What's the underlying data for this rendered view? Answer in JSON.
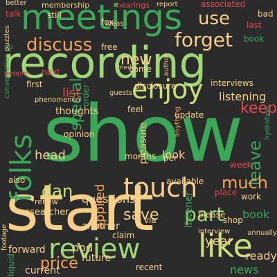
{
  "background_color": "#2b2b2b",
  "palette": {
    "green": "#3aa857",
    "lightgreen": "#9fd676",
    "yellowgreen": "#c8e07a",
    "cream": "#f6cf8a",
    "orange": "#f4a25b",
    "red": "#e0484d",
    "darkred": "#c0392b"
  },
  "words": [
    {
      "text": "show",
      "color": "green"
    },
    {
      "text": "start",
      "color": "cream"
    },
    {
      "text": "recording",
      "color": "lightgreen"
    },
    {
      "text": "meetings",
      "color": "green"
    },
    {
      "text": "folks",
      "color": "green"
    },
    {
      "text": "enjoy",
      "color": "yellowgreen"
    },
    {
      "text": "like",
      "color": "yellowgreen"
    },
    {
      "text": "touch",
      "color": "cream"
    },
    {
      "text": "review",
      "color": "lightgreen"
    },
    {
      "text": "forget",
      "color": "cream"
    },
    {
      "text": "discuss",
      "color": "orange"
    },
    {
      "text": "use",
      "color": "cream"
    },
    {
      "text": "new",
      "color": "cream"
    },
    {
      "text": "special",
      "color": "green"
    },
    {
      "text": "keep",
      "color": "red"
    },
    {
      "text": "leave",
      "color": "green"
    },
    {
      "text": "much",
      "color": "orange"
    },
    {
      "text": "part",
      "color": "lightgreen"
    },
    {
      "text": "dan",
      "color": "yellowgreen"
    },
    {
      "text": "applied",
      "color": "orange"
    },
    {
      "text": "save",
      "color": "cream"
    },
    {
      "text": "price",
      "color": "orange"
    },
    {
      "text": "questions",
      "color": "cream"
    },
    {
      "text": "list",
      "color": "red"
    },
    {
      "text": "listening",
      "color": "cream"
    },
    {
      "text": "head",
      "color": "cream"
    },
    {
      "text": "thoughts",
      "color": "cream"
    },
    {
      "text": "year",
      "color": "cream"
    },
    {
      "text": "ready",
      "color": "cream"
    },
    {
      "text": "news",
      "color": "green"
    },
    {
      "text": "book",
      "color": "green"
    },
    {
      "text": "look",
      "color": "cream"
    },
    {
      "text": "listener",
      "color": "green"
    },
    {
      "text": "pleasure",
      "color": "cream"
    },
    {
      "text": "future",
      "color": "cream"
    },
    {
      "text": "order",
      "color": "green"
    },
    {
      "text": "another",
      "color": "cream"
    },
    {
      "text": "pod",
      "color": "cream"
    },
    {
      "text": "current",
      "color": "cream"
    },
    {
      "text": "forward",
      "color": "cream"
    },
    {
      "text": "liquid",
      "color": "green"
    },
    {
      "text": "researcher",
      "color": "cream"
    },
    {
      "text": "shop",
      "color": "cream"
    },
    {
      "text": "available",
      "color": "cream"
    },
    {
      "text": "update",
      "color": "cream"
    },
    {
      "text": "interviews",
      "color": "cream"
    },
    {
      "text": "disclosure",
      "color": "cream"
    },
    {
      "text": "opinion",
      "color": "cream"
    },
    {
      "text": "associated",
      "color": "red"
    },
    {
      "text": "membership",
      "color": "cream"
    },
    {
      "text": "hearings",
      "color": "red"
    },
    {
      "text": "report",
      "color": "cream"
    },
    {
      "text": "better",
      "color": "cream"
    },
    {
      "text": "talk",
      "color": "red"
    },
    {
      "text": "still",
      "color": "cream"
    },
    {
      "text": "bad",
      "color": "cream"
    },
    {
      "text": "last",
      "color": "red"
    },
    {
      "text": "book",
      "color": "green"
    },
    {
      "text": "media",
      "color": "cream"
    },
    {
      "text": "free",
      "color": "cream"
    },
    {
      "text": "next",
      "color": "red"
    },
    {
      "text": "first",
      "color": "cream"
    },
    {
      "text": "conversation",
      "color": "green"
    },
    {
      "text": "phenomenon",
      "color": "cream"
    },
    {
      "text": "guests",
      "color": "cream"
    },
    {
      "text": "feel",
      "color": "cream"
    },
    {
      "text": "per",
      "color": "cream"
    },
    {
      "text": "months",
      "color": "cream"
    },
    {
      "text": "please",
      "color": "cream"
    },
    {
      "text": "interview",
      "color": "cream"
    },
    {
      "text": "place",
      "color": "red"
    },
    {
      "text": "work",
      "color": "cream"
    },
    {
      "text": "annually",
      "color": "cream"
    },
    {
      "text": "via",
      "color": "cream"
    },
    {
      "text": "claim",
      "color": "cream"
    },
    {
      "text": "recent",
      "color": "cream"
    },
    {
      "text": "renew",
      "color": "cream"
    },
    {
      "text": "also",
      "color": "cream"
    },
    {
      "text": "footage",
      "color": "cream"
    },
    {
      "text": "anything",
      "color": "orange"
    },
    {
      "text": "author",
      "color": "cream"
    },
    {
      "text": "hydration",
      "color": "green"
    },
    {
      "text": "come",
      "color": "cream"
    },
    {
      "text": "week",
      "color": "red"
    },
    {
      "text": "dp",
      "color": "green"
    },
    {
      "text": "puzzles",
      "color": "cream"
    },
    {
      "text": "fox",
      "color": "cream"
    },
    {
      "text": "people",
      "color": "red"
    },
    {
      "text": "ideas",
      "color": "cream"
    }
  ]
}
